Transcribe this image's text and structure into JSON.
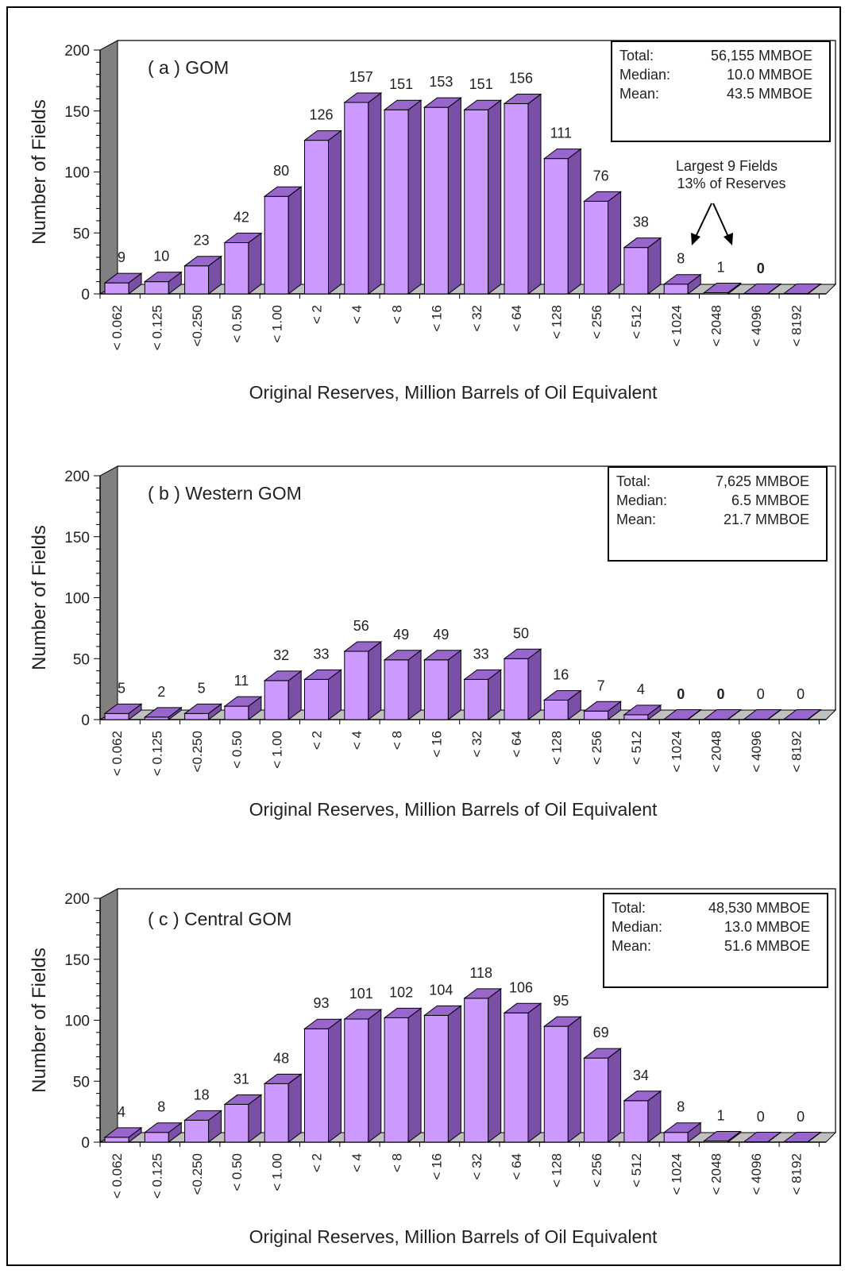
{
  "chart_data": [
    {
      "type": "bar",
      "panel_label": "( a )  GOM",
      "categories": [
        "< 0.062",
        "< 0.125",
        "<0.250",
        "< 0.50",
        "< 1.00",
        "< 2",
        "< 4",
        "< 8",
        "< 16",
        "< 32",
        "< 64",
        "< 128",
        "< 256",
        "< 512",
        "< 1024",
        "< 2048",
        "< 4096",
        "< 8192"
      ],
      "values": [
        9,
        10,
        23,
        42,
        80,
        126,
        157,
        151,
        153,
        151,
        156,
        111,
        76,
        38,
        8,
        1,
        0,
        0
      ],
      "value_labels": [
        "9",
        "10",
        "23",
        "42",
        "80",
        "126",
        "157",
        "151",
        "153",
        "151",
        "156",
        "111",
        "76",
        "38",
        "8",
        "1",
        "0",
        ""
      ],
      "bold_labels": [
        16
      ],
      "ylabel": "Number of Fields",
      "xlabel": "Original Reserves, Million Barrels of Oil Equivalent",
      "ylim": [
        0,
        200
      ],
      "yticks": [
        0,
        50,
        100,
        150,
        200
      ],
      "stats": [
        {
          "label": "Total:",
          "value": "56,155 MMBOE"
        },
        {
          "label": "Median:",
          "value": "10.0 MMBOE"
        },
        {
          "label": "Mean:",
          "value": "43.5 MMBOE"
        }
      ],
      "annotation": [
        "Largest 9 Fields",
        "13% of Reserves"
      ],
      "colors": {
        "bar_face": "#cc99ff",
        "bar_top": "#9966cc",
        "bar_side": "#7a4fa6",
        "floor": "#c0c0c0",
        "wall": "#808080"
      }
    },
    {
      "type": "bar",
      "panel_label": "( b )  Western GOM",
      "categories": [
        "< 0.062",
        "< 0.125",
        "<0.250",
        "< 0.50",
        "< 1.00",
        "< 2",
        "< 4",
        "< 8",
        "< 16",
        "< 32",
        "< 64",
        "< 128",
        "< 256",
        "< 512",
        "< 1024",
        "< 2048",
        "< 4096",
        "< 8192"
      ],
      "values": [
        5,
        2,
        5,
        11,
        32,
        33,
        56,
        49,
        49,
        33,
        50,
        16,
        7,
        4,
        0,
        0,
        0,
        0
      ],
      "value_labels": [
        "5",
        "2",
        "5",
        "11",
        "32",
        "33",
        "56",
        "49",
        "49",
        "33",
        "50",
        "16",
        "7",
        "4",
        "0",
        "0",
        "0",
        "0"
      ],
      "bold_labels": [
        14,
        15
      ],
      "ylabel": "Number of Fields",
      "xlabel": "Original Reserves, Million Barrels of Oil Equivalent",
      "ylim": [
        0,
        200
      ],
      "yticks": [
        0,
        50,
        100,
        150,
        200
      ],
      "stats": [
        {
          "label": "Total:",
          "value": "7,625  MMBOE"
        },
        {
          "label": "Median:",
          "value": "6.5  MMBOE"
        },
        {
          "label": "Mean:",
          "value": "21.7  MMBOE"
        }
      ],
      "annotation": [],
      "colors": {
        "bar_face": "#cc99ff",
        "bar_top": "#9966cc",
        "bar_side": "#7a4fa6",
        "floor": "#c0c0c0",
        "wall": "#808080"
      }
    },
    {
      "type": "bar",
      "panel_label": "( c )  Central GOM",
      "categories": [
        "< 0.062",
        "< 0.125",
        "<0.250",
        "< 0.50",
        "< 1.00",
        "< 2",
        "< 4",
        "< 8",
        "< 16",
        "< 32",
        "< 64",
        "< 128",
        "< 256",
        "< 512",
        "< 1024",
        "< 2048",
        "< 4096",
        "< 8192"
      ],
      "values": [
        4,
        8,
        18,
        31,
        48,
        93,
        101,
        102,
        104,
        118,
        106,
        95,
        69,
        34,
        8,
        1,
        0,
        0
      ],
      "value_labels": [
        "4",
        "8",
        "18",
        "31",
        "48",
        "93",
        "101",
        "102",
        "104",
        "118",
        "106",
        "95",
        "69",
        "34",
        "8",
        "1",
        "0",
        "0"
      ],
      "bold_labels": [],
      "ylabel": "Number of Fields",
      "xlabel": "Original Reserves, Million Barrels of Oil Equivalent",
      "ylim": [
        0,
        200
      ],
      "yticks": [
        0,
        50,
        100,
        150,
        200
      ],
      "stats": [
        {
          "label": "Total:",
          "value": "48,530  MMBOE"
        },
        {
          "label": "Median:",
          "value": "13.0  MMBOE"
        },
        {
          "label": "Mean:",
          "value": "51.6  MMBOE"
        }
      ],
      "annotation": [],
      "colors": {
        "bar_face": "#cc99ff",
        "bar_top": "#9966cc",
        "bar_side": "#7a4fa6",
        "floor": "#c0c0c0",
        "wall": "#808080"
      }
    }
  ]
}
